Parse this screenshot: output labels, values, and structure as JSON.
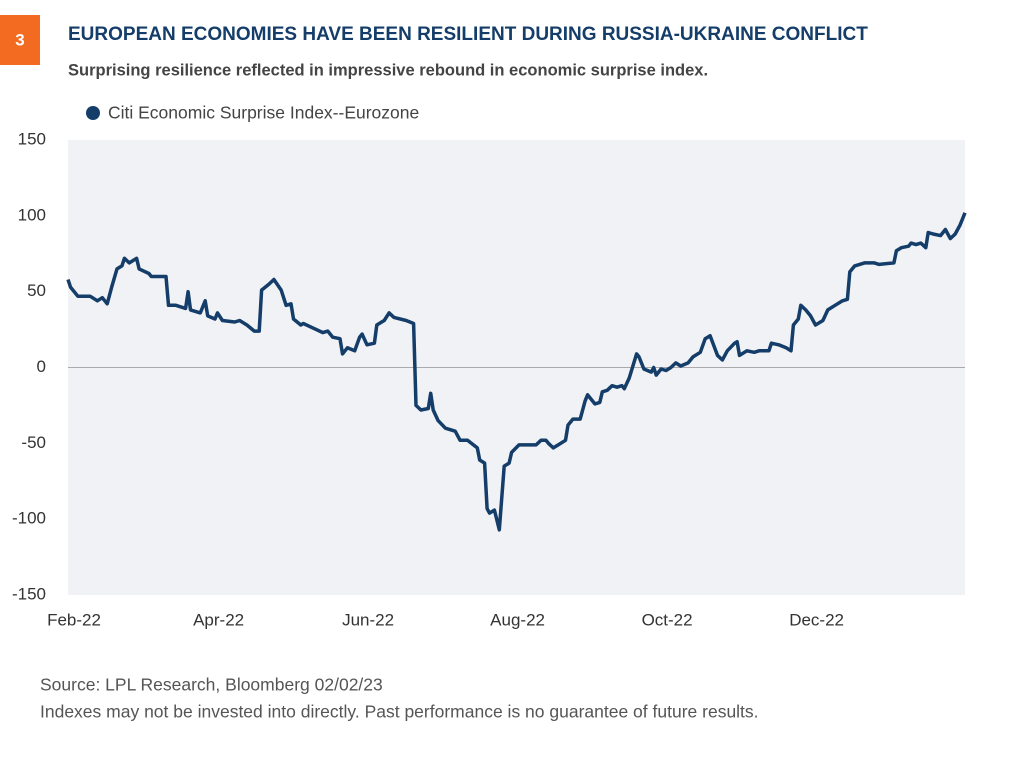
{
  "chart_data": {
    "type": "line",
    "badge": "3",
    "title": "EUROPEAN ECONOMIES HAVE BEEN RESILIENT DURING RUSSIA-UKRAINE CONFLICT",
    "subtitle": "Surprising resilience reflected in impressive rebound in economic surprise index.",
    "source": "Source: LPL Research, Bloomberg  02/02/23",
    "note": "Indexes may not be invested into directly. Past performance is no guarantee of future results.",
    "x": [
      0,
      1,
      4,
      9,
      12,
      14,
      16,
      18,
      20,
      22,
      23,
      25,
      28,
      29,
      33,
      34,
      40,
      41,
      44,
      48,
      49,
      50,
      54,
      56,
      57,
      60,
      61,
      63,
      68,
      70,
      73,
      76,
      78,
      79,
      82,
      84,
      87,
      89,
      91,
      92,
      95,
      96,
      100,
      104,
      106,
      108,
      111,
      112,
      114,
      117,
      119,
      120,
      122,
      125,
      126,
      129,
      131,
      133,
      138,
      141,
      142,
      144,
      147,
      148,
      149,
      151,
      154,
      158,
      160,
      163,
      167,
      168,
      170,
      171,
      172,
      174,
      176,
      178,
      180,
      181,
      184,
      189,
      191,
      193,
      195,
      196,
      198,
      200,
      203,
      204,
      206,
      209,
      211,
      212,
      215,
      217,
      218,
      220,
      222,
      224,
      226,
      227,
      229,
      232,
      233,
      235,
      238,
      239,
      240,
      242,
      244,
      246,
      248,
      250,
      253,
      255,
      258,
      260,
      262,
      265,
      267,
      269,
      272,
      273,
      274,
      277,
      280,
      282,
      286,
      287,
      290,
      293,
      295,
      296,
      298,
      299,
      301,
      303,
      305,
      306,
      308,
      310,
      313,
      316,
      318,
      319,
      321,
      325,
      329,
      331,
      337,
      338,
      340,
      343,
      344,
      346,
      348,
      350,
      351,
      353,
      356,
      358,
      360,
      362,
      364,
      366
    ],
    "series": [
      {
        "name": "Citi Economic Surprise Index--Eurozone",
        "color": "#143d69",
        "values": [
          58,
          53,
          47,
          47,
          44,
          46,
          42,
          54,
          65,
          67,
          72,
          69,
          72,
          65,
          62,
          60,
          60,
          41,
          41,
          39,
          50,
          38,
          36,
          44,
          34,
          32,
          36,
          31,
          30,
          31,
          28,
          24,
          24,
          51,
          55,
          58,
          51,
          41,
          42,
          32,
          28,
          29,
          26,
          23,
          24,
          20,
          19,
          9,
          13,
          11,
          20,
          22,
          15,
          16,
          28,
          31,
          36,
          33,
          31,
          29,
          -25,
          -28,
          -27,
          -17,
          -28,
          -35,
          -40,
          -42,
          -48,
          -48,
          -53,
          -61,
          -63,
          -93,
          -96,
          -94,
          -107,
          -65,
          -63,
          -56,
          -51,
          -51,
          -51,
          -48,
          -48,
          -50,
          -53,
          -51,
          -48,
          -38,
          -34,
          -34,
          -22,
          -18,
          -24,
          -23,
          -16,
          -15,
          -12,
          -13,
          -12,
          -14,
          -7,
          9,
          7,
          -1,
          -3,
          0,
          -5,
          -1,
          -2,
          0,
          3,
          1,
          3,
          7,
          10,
          19,
          21,
          8,
          5,
          11,
          16,
          17,
          8,
          11,
          10,
          11,
          11,
          16,
          15,
          13,
          11,
          28,
          32,
          41,
          38,
          34,
          28,
          29,
          31,
          38,
          41,
          44,
          45,
          63,
          67,
          69,
          69,
          68,
          69,
          77,
          79,
          80,
          82,
          81,
          82,
          79,
          89,
          88,
          87,
          91,
          85,
          88,
          94,
          102
        ]
      }
    ],
    "xlim": [
      0,
      366
    ],
    "xticks": [
      {
        "value": 0,
        "label": "Feb-22"
      },
      {
        "value": 59,
        "label": "Apr-22"
      },
      {
        "value": 120,
        "label": "Jun-22"
      },
      {
        "value": 181,
        "label": "Aug-22"
      },
      {
        "value": 242,
        "label": "Oct-22"
      },
      {
        "value": 303,
        "label": "Dec-22"
      }
    ],
    "ylim": [
      -150,
      150
    ],
    "yticks": [
      150,
      100,
      50,
      0,
      -50,
      -100,
      -150
    ],
    "grid": false
  }
}
